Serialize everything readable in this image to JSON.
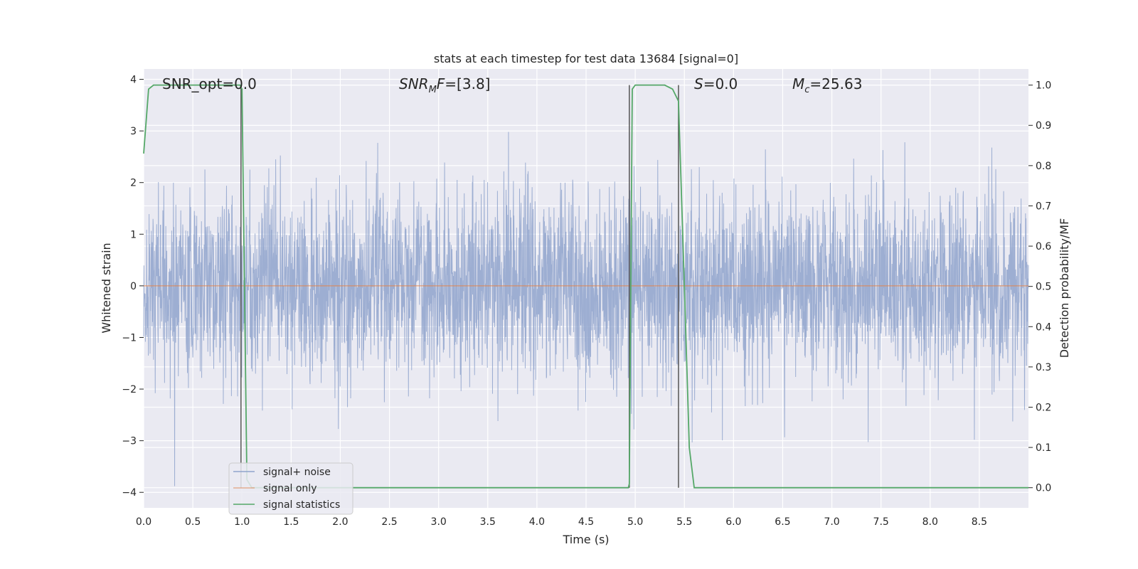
{
  "chart_data": {
    "type": "line",
    "title": "stats at each timestep for test data 13684 [signal=0]",
    "xlabel": "Time (s)",
    "ylabel_left": "Whitened strain",
    "ylabel_right": "Detection probability/MF",
    "xlim": [
      0.0,
      9.0
    ],
    "ylim_left": [
      -4.3,
      4.2
    ],
    "ylim_right": [
      -0.05,
      1.04
    ],
    "x_ticks": [
      "0.0",
      "0.5",
      "1.0",
      "1.5",
      "2.0",
      "2.5",
      "3.0",
      "3.5",
      "4.0",
      "4.5",
      "5.0",
      "5.5",
      "6.0",
      "6.5",
      "7.0",
      "7.5",
      "8.0",
      "8.5"
    ],
    "y_ticks_left": [
      "4",
      "3",
      "2",
      "1",
      "0",
      "−1",
      "−2",
      "−3",
      "−4"
    ],
    "y_ticks_right": [
      "1.0",
      "0.9",
      "0.8",
      "0.7",
      "0.6",
      "0.5",
      "0.4",
      "0.3",
      "0.2",
      "0.1",
      "0.0"
    ],
    "grid": true,
    "legend_position": "lower-left",
    "annotations": [
      {
        "id": "snr-opt",
        "text": "SNR_opt=0.0"
      },
      {
        "id": "snr-mf",
        "text": "SNR_MF=[3.8]"
      },
      {
        "id": "s",
        "text": "S=0.0"
      },
      {
        "id": "mc",
        "text": "M_c=25.63"
      }
    ],
    "series": [
      {
        "name": "signal+ noise",
        "axis": "left",
        "kind": "noise",
        "color": "#8fa3cc",
        "std": 0.9,
        "amplitude_range": [
          -3.9,
          3.8
        ]
      },
      {
        "name": "signal only",
        "axis": "left",
        "color": "#dd8452",
        "x": [
          0.0,
          9.0
        ],
        "y": [
          0.0,
          0.0
        ]
      },
      {
        "name": "signal statistics",
        "axis": "right",
        "color": "#55a868",
        "x": [
          0.0,
          0.05,
          0.1,
          0.2,
          0.5,
          0.9,
          0.98,
          1.0,
          1.05,
          1.1,
          1.5,
          2.0,
          3.0,
          3.5,
          3.6,
          4.0,
          4.5,
          4.9,
          4.93,
          4.94,
          4.97,
          5.0,
          5.1,
          5.3,
          5.38,
          5.44,
          5.5,
          5.55,
          5.6,
          6.0,
          7.0,
          8.0,
          9.0
        ],
        "y": [
          0.83,
          0.99,
          1.0,
          1.0,
          1.0,
          1.0,
          1.0,
          0.99,
          0.02,
          0.0,
          0.0,
          0.0,
          0.0,
          0.0,
          0.0,
          0.0,
          0.0,
          0.0,
          0.0,
          0.01,
          0.99,
          1.0,
          1.0,
          1.0,
          0.99,
          0.96,
          0.5,
          0.1,
          0.0,
          0.0,
          0.0,
          0.0,
          0.0
        ]
      }
    ],
    "vertical_lines": [
      {
        "x": 0.99,
        "color": "#555555"
      },
      {
        "x": 4.94,
        "color": "#555555"
      },
      {
        "x": 5.44,
        "color": "#555555"
      }
    ]
  }
}
